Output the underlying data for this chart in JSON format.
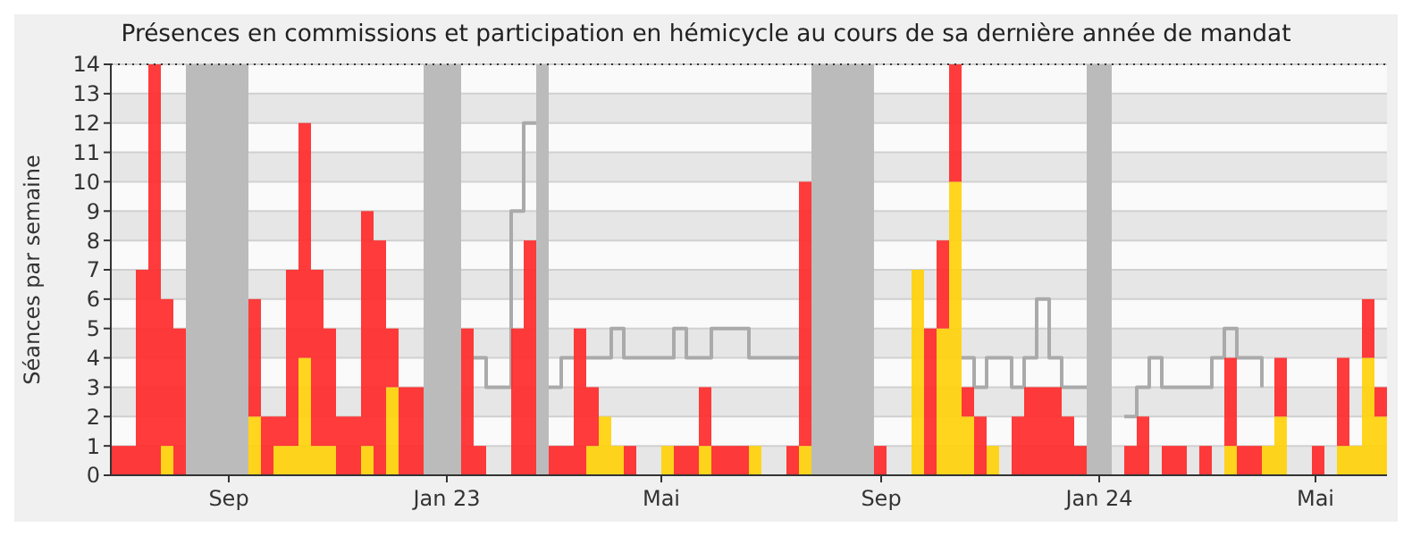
{
  "chart_data": {
    "type": "bar",
    "stacked": true,
    "title": "Présences en commissions et participation en hémicycle au cours de sa dernière année de mandat",
    "ylabel": "Séances par semaine",
    "x": [
      "2022-06-27",
      "2022-07-04",
      "2022-07-11",
      "2022-07-18",
      "2022-07-25",
      "2022-08-01",
      "2022-08-08",
      "2022-08-15",
      "2022-08-22",
      "2022-08-29",
      "2022-09-05",
      "2022-09-12",
      "2022-09-19",
      "2022-09-26",
      "2022-10-03",
      "2022-10-10",
      "2022-10-17",
      "2022-10-24",
      "2022-10-31",
      "2022-11-07",
      "2022-11-14",
      "2022-11-21",
      "2022-11-28",
      "2022-12-05",
      "2022-12-12",
      "2022-12-19",
      "2022-12-26",
      "2023-01-02",
      "2023-01-09",
      "2023-01-16",
      "2023-01-23",
      "2023-01-30",
      "2023-02-06",
      "2023-02-13",
      "2023-02-20",
      "2023-02-27",
      "2023-03-06",
      "2023-03-13",
      "2023-03-20",
      "2023-03-27",
      "2023-04-03",
      "2023-04-10",
      "2023-04-17",
      "2023-04-24",
      "2023-05-01",
      "2023-05-08",
      "2023-05-15",
      "2023-05-22",
      "2023-05-29",
      "2023-06-05",
      "2023-06-12",
      "2023-06-19",
      "2023-06-26",
      "2023-07-03",
      "2023-07-10",
      "2023-07-17",
      "2023-07-24",
      "2023-07-31",
      "2023-08-07",
      "2023-08-14",
      "2023-08-21",
      "2023-08-28",
      "2023-09-04",
      "2023-09-11",
      "2023-09-18",
      "2023-09-25",
      "2023-10-02",
      "2023-10-09",
      "2023-10-16",
      "2023-10-23",
      "2023-10-30",
      "2023-11-06",
      "2023-11-13",
      "2023-11-20",
      "2023-11-27",
      "2023-12-04",
      "2023-12-11",
      "2023-12-18",
      "2023-12-25",
      "2024-01-01",
      "2024-01-08",
      "2024-01-15",
      "2024-01-22",
      "2024-01-29",
      "2024-02-05",
      "2024-02-12",
      "2024-02-19",
      "2024-02-26",
      "2024-03-04",
      "2024-03-11",
      "2024-03-18",
      "2024-03-25",
      "2024-04-01",
      "2024-04-08",
      "2024-04-15",
      "2024-04-22",
      "2024-04-29",
      "2024-05-06",
      "2024-05-13",
      "2024-05-20",
      "2024-05-27",
      "2024-06-03"
    ],
    "series": [
      {
        "color": "#ffd20a",
        "values": [
          0,
          0,
          0,
          0,
          1,
          0,
          0,
          0,
          0,
          0,
          0,
          2,
          0,
          1,
          1,
          4,
          1,
          1,
          0,
          0,
          1,
          0,
          3,
          0,
          0,
          0,
          0,
          0,
          0,
          0,
          0,
          0,
          0,
          0,
          0,
          0,
          0,
          0,
          1,
          2,
          1,
          0,
          0,
          0,
          1,
          0,
          0,
          1,
          0,
          0,
          0,
          1,
          0,
          0,
          0,
          1,
          0,
          0,
          0,
          0,
          0,
          0,
          0,
          0,
          7,
          0,
          5,
          10,
          2,
          0,
          1,
          0,
          0,
          0,
          0,
          0,
          0,
          0,
          0,
          0,
          0,
          0,
          0,
          0,
          0,
          0,
          0,
          0,
          0,
          1,
          0,
          0,
          1,
          2,
          0,
          0,
          0,
          0,
          1,
          1,
          4,
          2
        ]
      },
      {
        "color": "#ff2a2a",
        "values": [
          1,
          1,
          7,
          14,
          5,
          5,
          0,
          0,
          0,
          0,
          0,
          4,
          2,
          1,
          6,
          8,
          6,
          4,
          2,
          2,
          8,
          8,
          2,
          3,
          3,
          0,
          0,
          0,
          5,
          1,
          0,
          0,
          5,
          8,
          0,
          1,
          1,
          5,
          2,
          0,
          0,
          1,
          0,
          0,
          0,
          1,
          1,
          2,
          1,
          1,
          1,
          0,
          0,
          0,
          1,
          9,
          0,
          0,
          0,
          0,
          0,
          1,
          0,
          0,
          0,
          5,
          3,
          4,
          1,
          2,
          0,
          0,
          2,
          3,
          3,
          3,
          2,
          1,
          0,
          0,
          0,
          1,
          2,
          0,
          1,
          1,
          0,
          1,
          0,
          3,
          1,
          1,
          0,
          2,
          0,
          0,
          1,
          0,
          3,
          0,
          2,
          1
        ]
      },
      {
        "type": "step",
        "color": "#aaaaaa",
        "values": [
          null,
          null,
          null,
          null,
          null,
          null,
          null,
          null,
          null,
          null,
          null,
          null,
          null,
          null,
          null,
          null,
          null,
          null,
          null,
          null,
          null,
          null,
          null,
          null,
          null,
          null,
          null,
          null,
          null,
          4,
          3,
          3,
          9,
          12,
          null,
          3,
          4,
          null,
          4,
          4,
          5,
          4,
          4,
          4,
          4,
          5,
          4,
          4,
          5,
          5,
          5,
          4,
          4,
          4,
          4,
          null,
          null,
          null,
          null,
          null,
          null,
          null,
          null,
          null,
          null,
          null,
          null,
          null,
          4,
          3,
          4,
          4,
          3,
          4,
          6,
          4,
          3,
          3,
          null,
          null,
          null,
          2,
          3,
          4,
          3,
          3,
          3,
          3,
          4,
          5,
          4,
          4,
          3,
          null,
          null,
          null,
          null,
          null,
          null,
          null,
          null,
          null
        ]
      }
    ],
    "xlim": [
      "2022-06-27",
      "2024-06-10"
    ],
    "xticks": [
      {
        "value": "2022-09-01",
        "label": "Sep"
      },
      {
        "value": "2023-01-01",
        "label": "Jan 23"
      },
      {
        "value": "2023-05-01",
        "label": "Mai"
      },
      {
        "value": "2023-09-01",
        "label": "Sep"
      },
      {
        "value": "2024-01-01",
        "label": "Jan 24"
      },
      {
        "value": "2024-05-01",
        "label": "Mai"
      }
    ],
    "ylim": [
      0,
      14
    ],
    "yticks": [
      0,
      1,
      2,
      3,
      4,
      5,
      6,
      7,
      8,
      9,
      10,
      11,
      12,
      13,
      14
    ],
    "grid": "y",
    "bands": [
      {
        "axis": "x",
        "from": "2022-08-08",
        "to": "2022-09-12",
        "color": "#bbbbbb"
      },
      {
        "axis": "x",
        "from": "2022-12-19",
        "to": "2023-01-09",
        "color": "#bbbbbb"
      },
      {
        "axis": "x",
        "from": "2023-02-20",
        "to": "2023-02-27",
        "color": "#bbbbbb"
      },
      {
        "axis": "x",
        "from": "2023-07-24",
        "to": "2023-08-28",
        "color": "#bbbbbb"
      },
      {
        "axis": "x",
        "from": "2023-12-25",
        "to": "2024-01-08",
        "color": "#bbbbbb"
      }
    ]
  }
}
